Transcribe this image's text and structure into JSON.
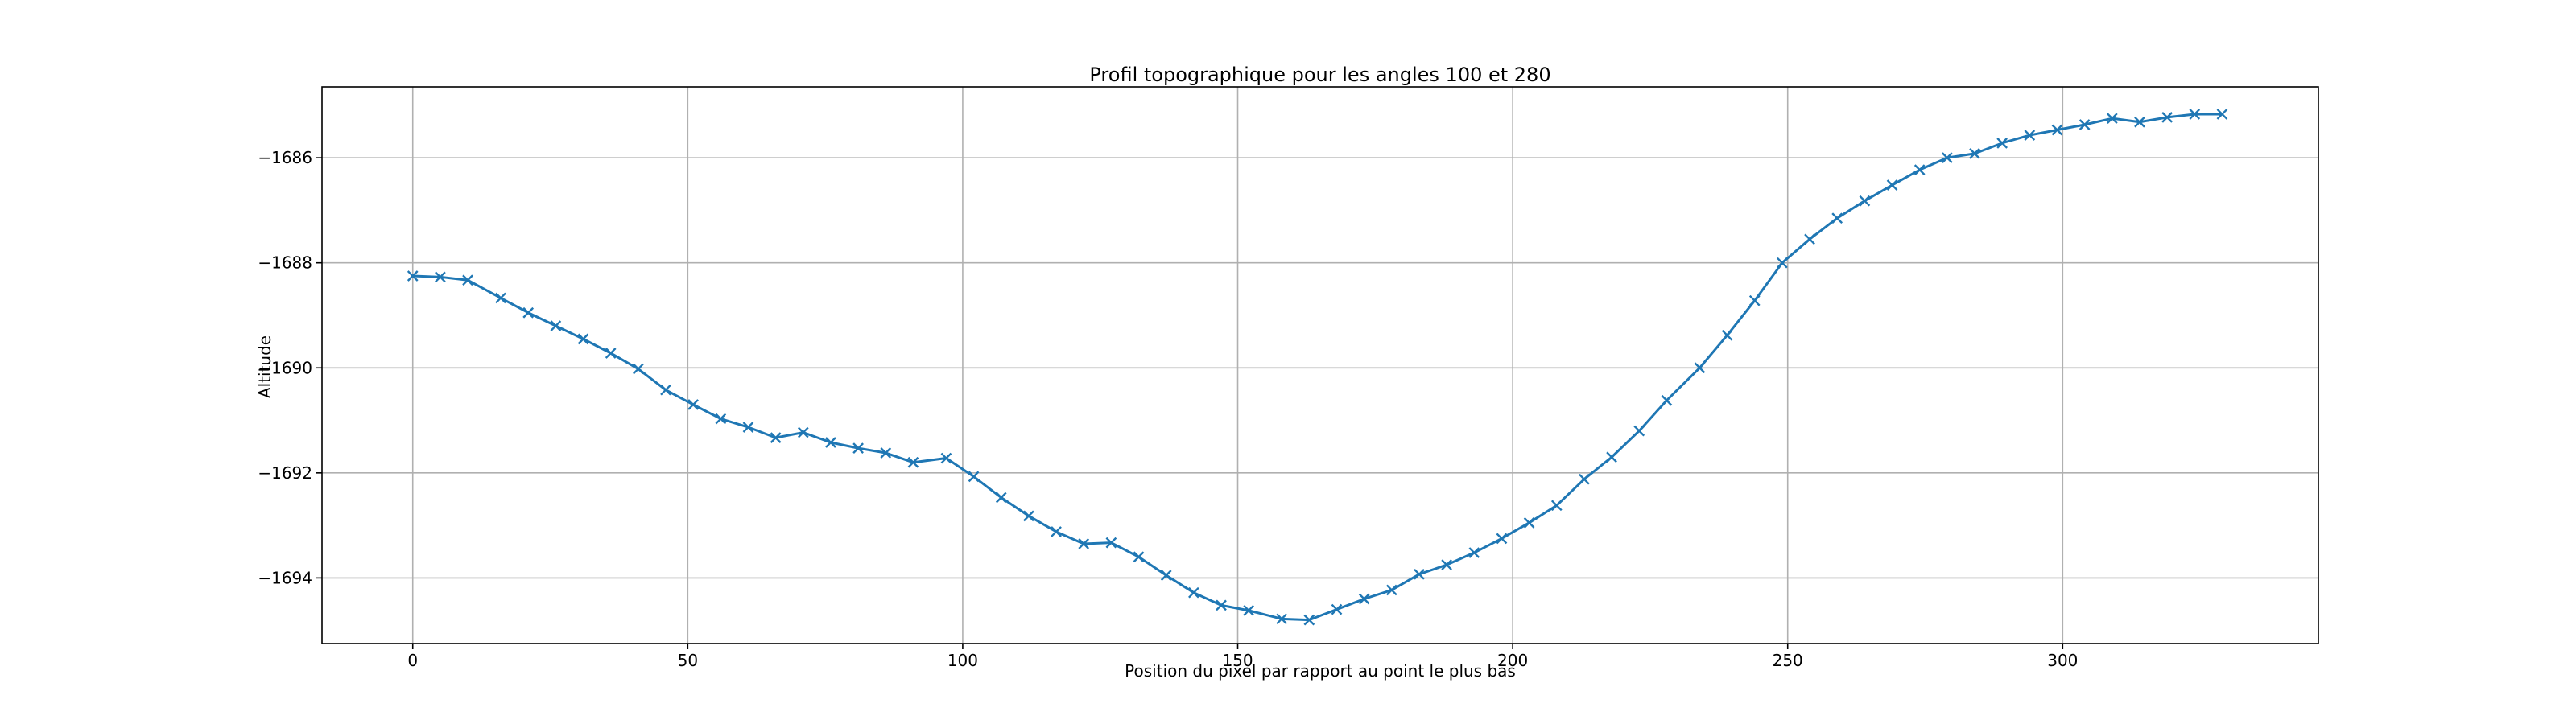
{
  "chart_data": {
    "type": "line",
    "title": "Profil topographique pour les angles 100 et 280",
    "xlabel": "Position du pixel par rapport au point le plus bas",
    "ylabel": "Altitude",
    "xlim": [
      -16.5,
      346.5
    ],
    "ylim": [
      -1695.25,
      -1684.65
    ],
    "xticks": [
      0,
      50,
      100,
      150,
      200,
      250,
      300
    ],
    "yticks": [
      -1694,
      -1692,
      -1690,
      -1688,
      -1686
    ],
    "xtick_labels": [
      "0",
      "50",
      "100",
      "150",
      "200",
      "250",
      "300"
    ],
    "ytick_labels": [
      "−1694",
      "−1692",
      "−1690",
      "−1688",
      "−1686"
    ],
    "grid": true,
    "marker": "x",
    "line_color": "#1f77b4",
    "series": [
      {
        "x": [
          0,
          5,
          10,
          16,
          21,
          26,
          31,
          36,
          41,
          46,
          51,
          56,
          61,
          66,
          71,
          76,
          81,
          86,
          91,
          97,
          102,
          107,
          112,
          117,
          122,
          127,
          132,
          137,
          142,
          147,
          152,
          158,
          163,
          168,
          173,
          178,
          183,
          188,
          193,
          198,
          203,
          208,
          213,
          218,
          223,
          228,
          234,
          239,
          244,
          249,
          254,
          259,
          264,
          269,
          274,
          279,
          284,
          289,
          294,
          299,
          304,
          309,
          314,
          319,
          324,
          329
        ],
        "y": [
          -1688.25,
          -1688.27,
          -1688.33,
          -1688.67,
          -1688.95,
          -1689.2,
          -1689.45,
          -1689.72,
          -1690.02,
          -1690.42,
          -1690.7,
          -1690.97,
          -1691.13,
          -1691.33,
          -1691.23,
          -1691.42,
          -1691.53,
          -1691.62,
          -1691.8,
          -1691.72,
          -1692.07,
          -1692.47,
          -1692.82,
          -1693.12,
          -1693.35,
          -1693.33,
          -1693.6,
          -1693.95,
          -1694.28,
          -1694.52,
          -1694.62,
          -1694.78,
          -1694.8,
          -1694.6,
          -1694.4,
          -1694.23,
          -1693.93,
          -1693.75,
          -1693.52,
          -1693.25,
          -1692.95,
          -1692.62,
          -1692.12,
          -1691.7,
          -1691.2,
          -1690.62,
          -1690.0,
          -1689.38,
          -1688.72,
          -1688.0,
          -1687.55,
          -1687.15,
          -1686.82,
          -1686.52,
          -1686.23,
          -1686.0,
          -1685.92,
          -1685.72,
          -1685.57,
          -1685.47,
          -1685.37,
          -1685.25,
          -1685.32,
          -1685.23,
          -1685.17,
          -1685.17
        ]
      }
    ]
  }
}
